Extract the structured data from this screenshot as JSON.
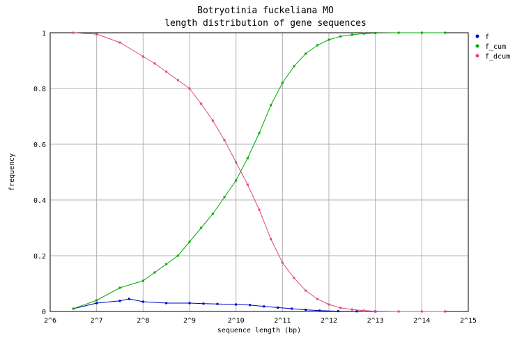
{
  "chart_data": {
    "type": "line",
    "title": "Botryotinia fuckeliana MO",
    "subtitle": "length distribution of gene sequences",
    "xlabel": "sequence length (bp)",
    "ylabel": "frequency",
    "xscale": "log2",
    "xlim": [
      6,
      15
    ],
    "ylim": [
      0,
      1
    ],
    "x_tick_labels": [
      "2^6",
      "2^7",
      "2^8",
      "2^9",
      "2^10",
      "2^11",
      "2^12",
      "2^13",
      "2^14",
      "2^15"
    ],
    "y_tick_labels": [
      "0",
      "0.2",
      "0.4",
      "0.6",
      "0.8",
      "1"
    ],
    "grid": true,
    "legend_position": "top-right",
    "series": [
      {
        "name": "f",
        "color": "#0000cc",
        "points": [
          [
            6.5,
            0.01
          ],
          [
            7.0,
            0.03
          ],
          [
            7.5,
            0.038
          ],
          [
            7.7,
            0.045
          ],
          [
            8.0,
            0.035
          ],
          [
            8.5,
            0.03
          ],
          [
            9.0,
            0.03
          ],
          [
            9.3,
            0.028
          ],
          [
            9.6,
            0.027
          ],
          [
            10.0,
            0.025
          ],
          [
            10.3,
            0.023
          ],
          [
            10.6,
            0.018
          ],
          [
            10.9,
            0.014
          ],
          [
            11.2,
            0.01
          ],
          [
            11.5,
            0.006
          ],
          [
            11.8,
            0.003
          ],
          [
            12.2,
            0.001
          ],
          [
            12.6,
            0.0005
          ],
          [
            13.0,
            0.0
          ],
          [
            14.5,
            0.0
          ]
        ]
      },
      {
        "name": "f_cum",
        "color": "#00aa00",
        "points": [
          [
            6.5,
            0.01
          ],
          [
            7.0,
            0.04
          ],
          [
            7.5,
            0.085
          ],
          [
            8.0,
            0.11
          ],
          [
            8.25,
            0.14
          ],
          [
            8.5,
            0.17
          ],
          [
            8.75,
            0.2
          ],
          [
            9.0,
            0.25
          ],
          [
            9.25,
            0.3
          ],
          [
            9.5,
            0.35
          ],
          [
            9.75,
            0.41
          ],
          [
            10.0,
            0.47
          ],
          [
            10.25,
            0.55
          ],
          [
            10.5,
            0.64
          ],
          [
            10.75,
            0.74
          ],
          [
            11.0,
            0.82
          ],
          [
            11.25,
            0.88
          ],
          [
            11.5,
            0.925
          ],
          [
            11.75,
            0.955
          ],
          [
            12.0,
            0.975
          ],
          [
            12.25,
            0.987
          ],
          [
            12.5,
            0.993
          ],
          [
            12.75,
            0.997
          ],
          [
            13.0,
            0.999
          ],
          [
            13.5,
            1.0
          ],
          [
            14.0,
            1.0
          ],
          [
            14.5,
            1.0
          ]
        ]
      },
      {
        "name": "f_dcum",
        "color": "#e04878",
        "points": [
          [
            6.5,
            1.0
          ],
          [
            7.0,
            0.995
          ],
          [
            7.5,
            0.965
          ],
          [
            8.0,
            0.915
          ],
          [
            8.25,
            0.89
          ],
          [
            8.5,
            0.86
          ],
          [
            8.75,
            0.83
          ],
          [
            9.0,
            0.8
          ],
          [
            9.25,
            0.745
          ],
          [
            9.5,
            0.685
          ],
          [
            9.75,
            0.615
          ],
          [
            10.0,
            0.535
          ],
          [
            10.25,
            0.455
          ],
          [
            10.5,
            0.365
          ],
          [
            10.75,
            0.26
          ],
          [
            11.0,
            0.175
          ],
          [
            11.25,
            0.12
          ],
          [
            11.5,
            0.075
          ],
          [
            11.75,
            0.045
          ],
          [
            12.0,
            0.025
          ],
          [
            12.25,
            0.013
          ],
          [
            12.5,
            0.007
          ],
          [
            12.75,
            0.003
          ],
          [
            13.0,
            0.001
          ],
          [
            13.5,
            0.0
          ],
          [
            14.0,
            0.0
          ],
          [
            14.5,
            0.0
          ]
        ]
      }
    ]
  }
}
